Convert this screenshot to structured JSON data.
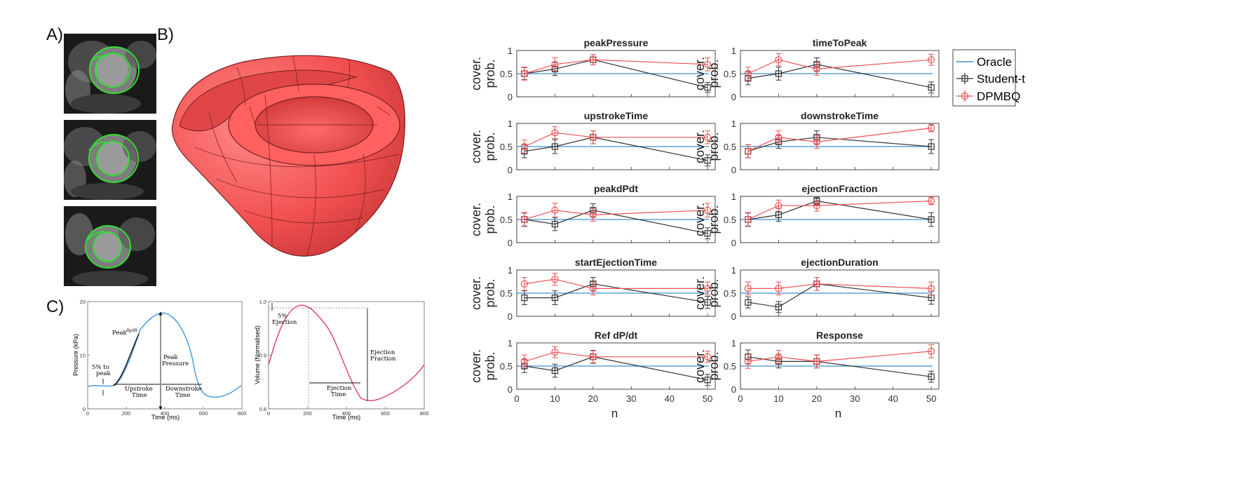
{
  "panel_labels": {
    "a": "A)",
    "b": "B)",
    "c": "C)"
  },
  "colors": {
    "oracle": "#3f8fcf",
    "student": "#333333",
    "dpmbq": "#f05050",
    "pressure_curve": "#4a9be0",
    "volume_curve": "#e0457a",
    "heart": "#ff5050",
    "contour": "#33dd33"
  },
  "pressure_plot": {
    "ylabel": "Pressure (kPa)",
    "xlabel": "Time (ms)",
    "xticks": [
      "0",
      "200",
      "400",
      "600",
      "800"
    ],
    "yticks": [
      "0",
      "10",
      "20"
    ],
    "annotations": {
      "five_pct_l1": "5% to",
      "five_pct_l2": "peak",
      "peak_grad": "Peak",
      "peak_grad_frac": "dp/dt",
      "peak_pressure_l1": "Peak",
      "peak_pressure_l2": "Pressure",
      "upstroke_l1": "Upstroke",
      "upstroke_l2": "Time",
      "downstroke_l1": "Downstroke",
      "downstroke_l2": "Time"
    }
  },
  "volume_plot": {
    "ylabel": "Volume (Normalised)",
    "xlabel": "Time (ms)",
    "xticks": [
      "0",
      "200",
      "400",
      "600",
      "800"
    ],
    "yticks": [
      "0.8",
      "0.9",
      "1.0"
    ],
    "annotations": {
      "five_pct_l1": "5%",
      "five_pct_l2": "Ejection",
      "ejection_time_l1": "Ejection",
      "ejection_time_l2": "Time",
      "ejection_fraction_l1": "Ejection",
      "ejection_fraction_l2": "Fraction"
    }
  },
  "legend": {
    "oracle": "Oracle",
    "student": "Student-t",
    "dpmbq": "DPMBQ"
  },
  "chart_data": {
    "type": "line",
    "ylabel_line1": "cover.",
    "ylabel_line2": "prob.",
    "xlabel": "n",
    "x": [
      2,
      10,
      20,
      50
    ],
    "xticks": [
      "0",
      "10",
      "20",
      "30",
      "40",
      "50"
    ],
    "yticks": [
      "0",
      "0.5",
      "1"
    ],
    "xlim": [
      0,
      52
    ],
    "ylim": [
      0,
      1
    ],
    "oracle_level": 0.5,
    "panels": [
      {
        "title": "peakPressure",
        "student": [
          0.5,
          0.6,
          0.8,
          0.2
        ],
        "dpmbq": [
          0.5,
          0.7,
          0.8,
          0.7
        ],
        "student_err": [
          0.13,
          0.14,
          0.11,
          0.11
        ],
        "dpmbq_err": [
          0.14,
          0.14,
          0.11,
          0.14
        ]
      },
      {
        "title": "timeToPeak",
        "student": [
          0.4,
          0.5,
          0.7,
          0.2
        ],
        "dpmbq": [
          0.5,
          0.8,
          0.6,
          0.8
        ],
        "student_err": [
          0.14,
          0.14,
          0.14,
          0.12
        ],
        "dpmbq_err": [
          0.14,
          0.13,
          0.14,
          0.12
        ]
      },
      {
        "title": "upstrokeTime",
        "student": [
          0.4,
          0.5,
          0.7,
          0.2
        ],
        "dpmbq": [
          0.5,
          0.8,
          0.7,
          0.7
        ],
        "student_err": [
          0.14,
          0.15,
          0.14,
          0.12
        ],
        "dpmbq_err": [
          0.14,
          0.13,
          0.14,
          0.14
        ]
      },
      {
        "title": "downstrokeTime",
        "student": [
          0.4,
          0.6,
          0.7,
          0.5
        ],
        "dpmbq": [
          0.4,
          0.7,
          0.6,
          0.9
        ],
        "student_err": [
          0.14,
          0.14,
          0.14,
          0.15
        ],
        "dpmbq_err": [
          0.14,
          0.14,
          0.14,
          0.08
        ]
      },
      {
        "title": "peakdPdt",
        "student": [
          0.5,
          0.4,
          0.7,
          0.2
        ],
        "dpmbq": [
          0.5,
          0.7,
          0.6,
          0.7
        ],
        "student_err": [
          0.14,
          0.14,
          0.14,
          0.12
        ],
        "dpmbq_err": [
          0.15,
          0.15,
          0.14,
          0.15
        ]
      },
      {
        "title": "ejectionFraction",
        "student": [
          0.5,
          0.6,
          0.9,
          0.5
        ],
        "dpmbq": [
          0.5,
          0.8,
          0.8,
          0.9
        ],
        "student_err": [
          0.14,
          0.14,
          0.08,
          0.15
        ],
        "dpmbq_err": [
          0.15,
          0.12,
          0.12,
          0.08
        ]
      },
      {
        "title": "startEjectionTime",
        "student": [
          0.4,
          0.4,
          0.7,
          0.3
        ],
        "dpmbq": [
          0.7,
          0.8,
          0.6,
          0.6
        ],
        "student_err": [
          0.15,
          0.15,
          0.14,
          0.13
        ],
        "dpmbq_err": [
          0.14,
          0.13,
          0.14,
          0.14
        ]
      },
      {
        "title": "ejectionDuration",
        "student": [
          0.3,
          0.2,
          0.7,
          0.4
        ],
        "dpmbq": [
          0.6,
          0.6,
          0.7,
          0.6
        ],
        "student_err": [
          0.12,
          0.12,
          0.14,
          0.14
        ],
        "dpmbq_err": [
          0.14,
          0.14,
          0.14,
          0.14
        ]
      },
      {
        "title": "Ref dP/dt",
        "student": [
          0.5,
          0.4,
          0.7,
          0.2
        ],
        "dpmbq": [
          0.6,
          0.8,
          0.7,
          0.7
        ],
        "student_err": [
          0.14,
          0.14,
          0.14,
          0.12
        ],
        "dpmbq_err": [
          0.14,
          0.12,
          0.13,
          0.12
        ]
      },
      {
        "title": "Response",
        "student": [
          0.7,
          0.6,
          0.6,
          0.27
        ],
        "dpmbq": [
          0.6,
          0.7,
          0.6,
          0.82
        ],
        "student_err": [
          0.15,
          0.14,
          0.14,
          0.12
        ],
        "dpmbq_err": [
          0.15,
          0.14,
          0.14,
          0.14
        ]
      }
    ]
  }
}
